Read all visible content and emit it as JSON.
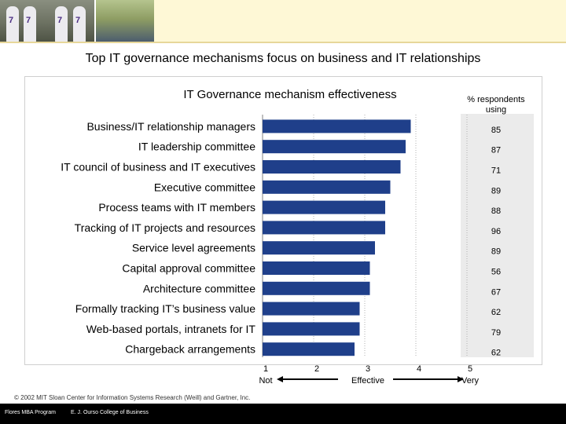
{
  "slide_title": "Top IT governance mechanisms focus on business and IT relationships",
  "photo_jersey_numbers": [
    "7",
    "7",
    "7",
    "7"
  ],
  "copyright": "© 2002 MIT Sloan Center for Information Systems Research (Weill) and Gartner, Inc.",
  "footer": {
    "left": "Flores MBA Program",
    "right": "E. J. Ourso College of Business"
  },
  "colors": {
    "bar": "#1f3f8a",
    "shade": "#ebebeb",
    "top_band": "#fef8d6",
    "footer_bar": "#000000"
  },
  "chart_data": {
    "type": "bar",
    "orientation": "horizontal",
    "title": "IT Governance mechanism effectiveness",
    "side_header": "% respondents using",
    "categories": [
      "Business/IT relationship managers",
      "IT leadership committee",
      "IT council of business and IT executives",
      "Executive committee",
      "Process teams with IT members",
      "Tracking of IT projects and resources",
      "Service level agreements",
      "Capital approval committee",
      "Architecture committee",
      "Formally tracking IT’s business value",
      "Web-based portals,  intranets for IT",
      "Chargeback arrangements"
    ],
    "values": [
      3.9,
      3.8,
      3.7,
      3.5,
      3.4,
      3.4,
      3.2,
      3.1,
      3.1,
      2.9,
      2.9,
      2.8
    ],
    "respondents_pct": [
      "85",
      "87",
      "71",
      "89",
      "88",
      "96",
      "89",
      "56",
      "67",
      "62",
      "79",
      "62"
    ],
    "xlim": [
      1,
      5
    ],
    "x_ticks": [
      "1",
      "2",
      "3",
      "4",
      "5"
    ],
    "x_tick_labels": {
      "1": "Not",
      "3": "Effective",
      "5": "Very"
    },
    "grid": "vertical dotted lines at each tick"
  }
}
